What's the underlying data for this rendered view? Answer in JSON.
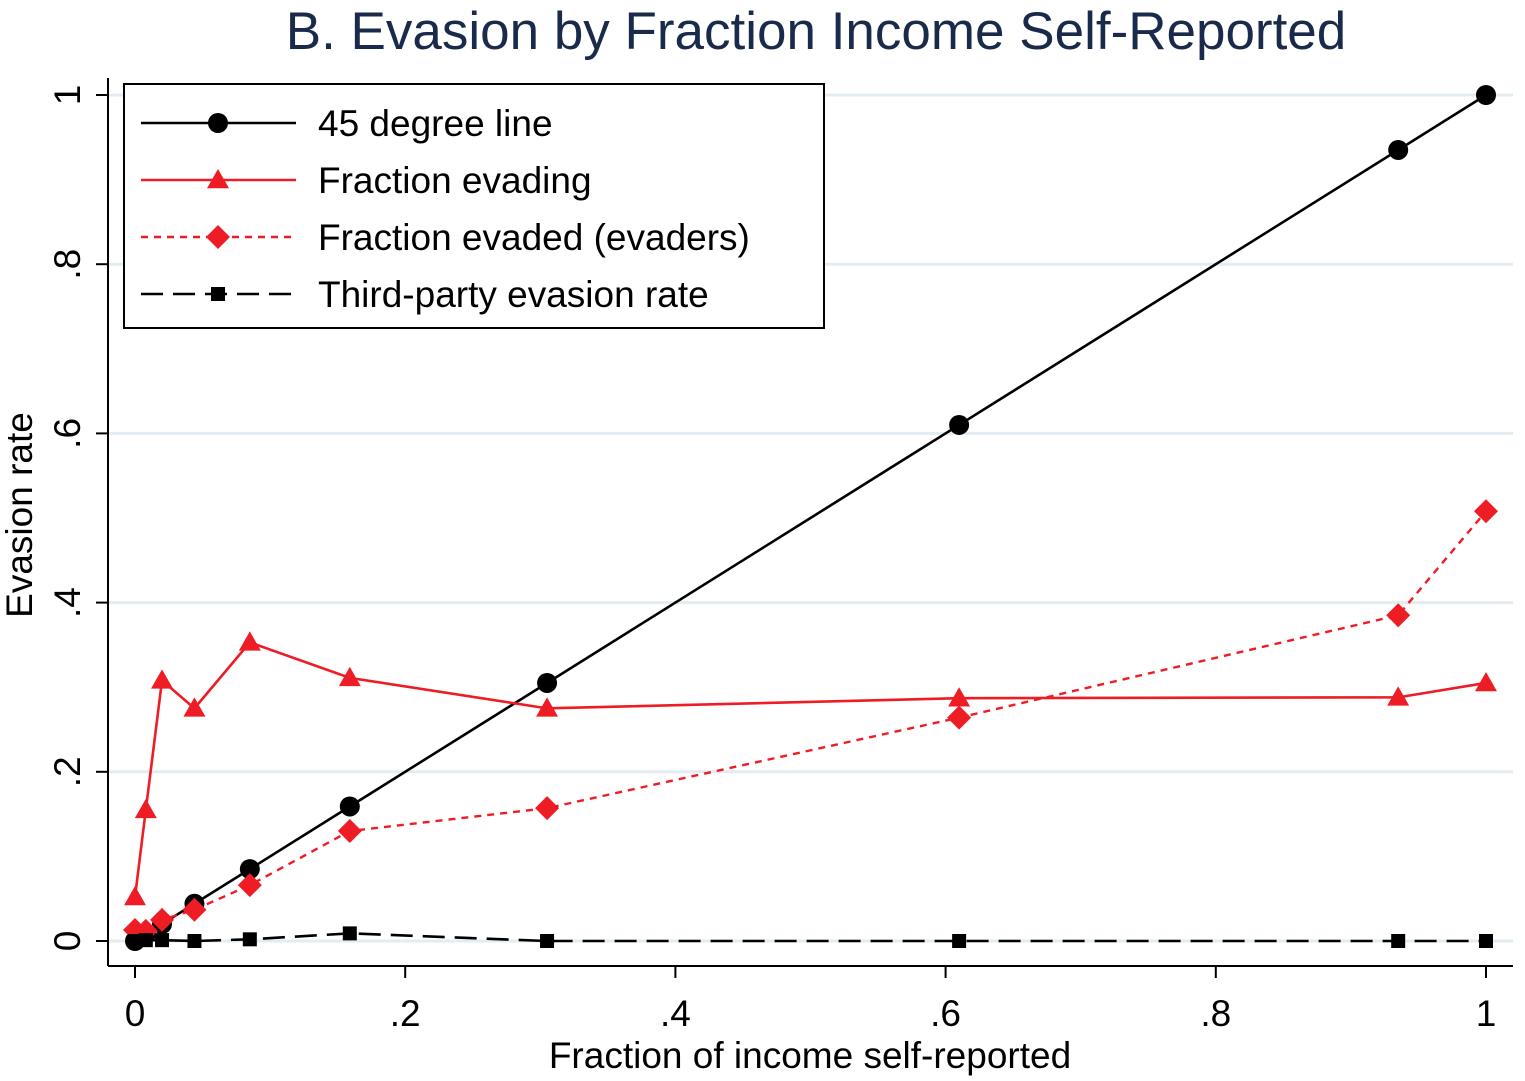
{
  "chart_data": {
    "type": "line",
    "title": "B. Evasion by Fraction Income Self-Reported",
    "xlabel": "Fraction of income self-reported",
    "ylabel": "Evasion rate",
    "xlim": [
      0,
      1
    ],
    "ylim": [
      0,
      1
    ],
    "xticks": [
      0,
      0.2,
      0.4,
      0.6,
      0.8,
      1
    ],
    "xtick_labels": [
      "0",
      ".2",
      ".4",
      ".6",
      ".8",
      "1"
    ],
    "yticks": [
      0,
      0.2,
      0.4,
      0.6,
      0.8,
      1
    ],
    "ytick_labels": [
      "0",
      ".2",
      ".4",
      ".6",
      ".8",
      "1"
    ],
    "grid": "horizontal",
    "legend_position": "top-left",
    "x": [
      0,
      0.008,
      0.02,
      0.044,
      0.085,
      0.159,
      0.305,
      0.61,
      0.935,
      1.0
    ],
    "series": [
      {
        "name": "45 degree line",
        "color": "#000000",
        "marker": "circle",
        "line": "solid",
        "values": [
          0,
          0.008,
          0.02,
          0.044,
          0.085,
          0.159,
          0.305,
          0.61,
          0.935,
          1.0
        ]
      },
      {
        "name": "Fraction evading",
        "color": "#ee1c25",
        "marker": "triangle",
        "line": "solid",
        "values": [
          0.052,
          0.155,
          0.308,
          0.275,
          0.353,
          0.311,
          0.275,
          0.287,
          0.288,
          0.305
        ]
      },
      {
        "name": "Fraction evaded (evaders)",
        "color": "#ee1c25",
        "marker": "diamond",
        "line": "dashed",
        "values": [
          0.013,
          0.012,
          0.025,
          0.037,
          0.066,
          0.13,
          0.157,
          0.264,
          0.385,
          0.508
        ]
      },
      {
        "name": "Third-party evasion rate",
        "color": "#000000",
        "marker": "square",
        "line": "longdash",
        "values": [
          0.0,
          0.001,
          0.001,
          0.0,
          0.002,
          0.009,
          0.0,
          0.0,
          0.0,
          0.0
        ]
      }
    ]
  }
}
